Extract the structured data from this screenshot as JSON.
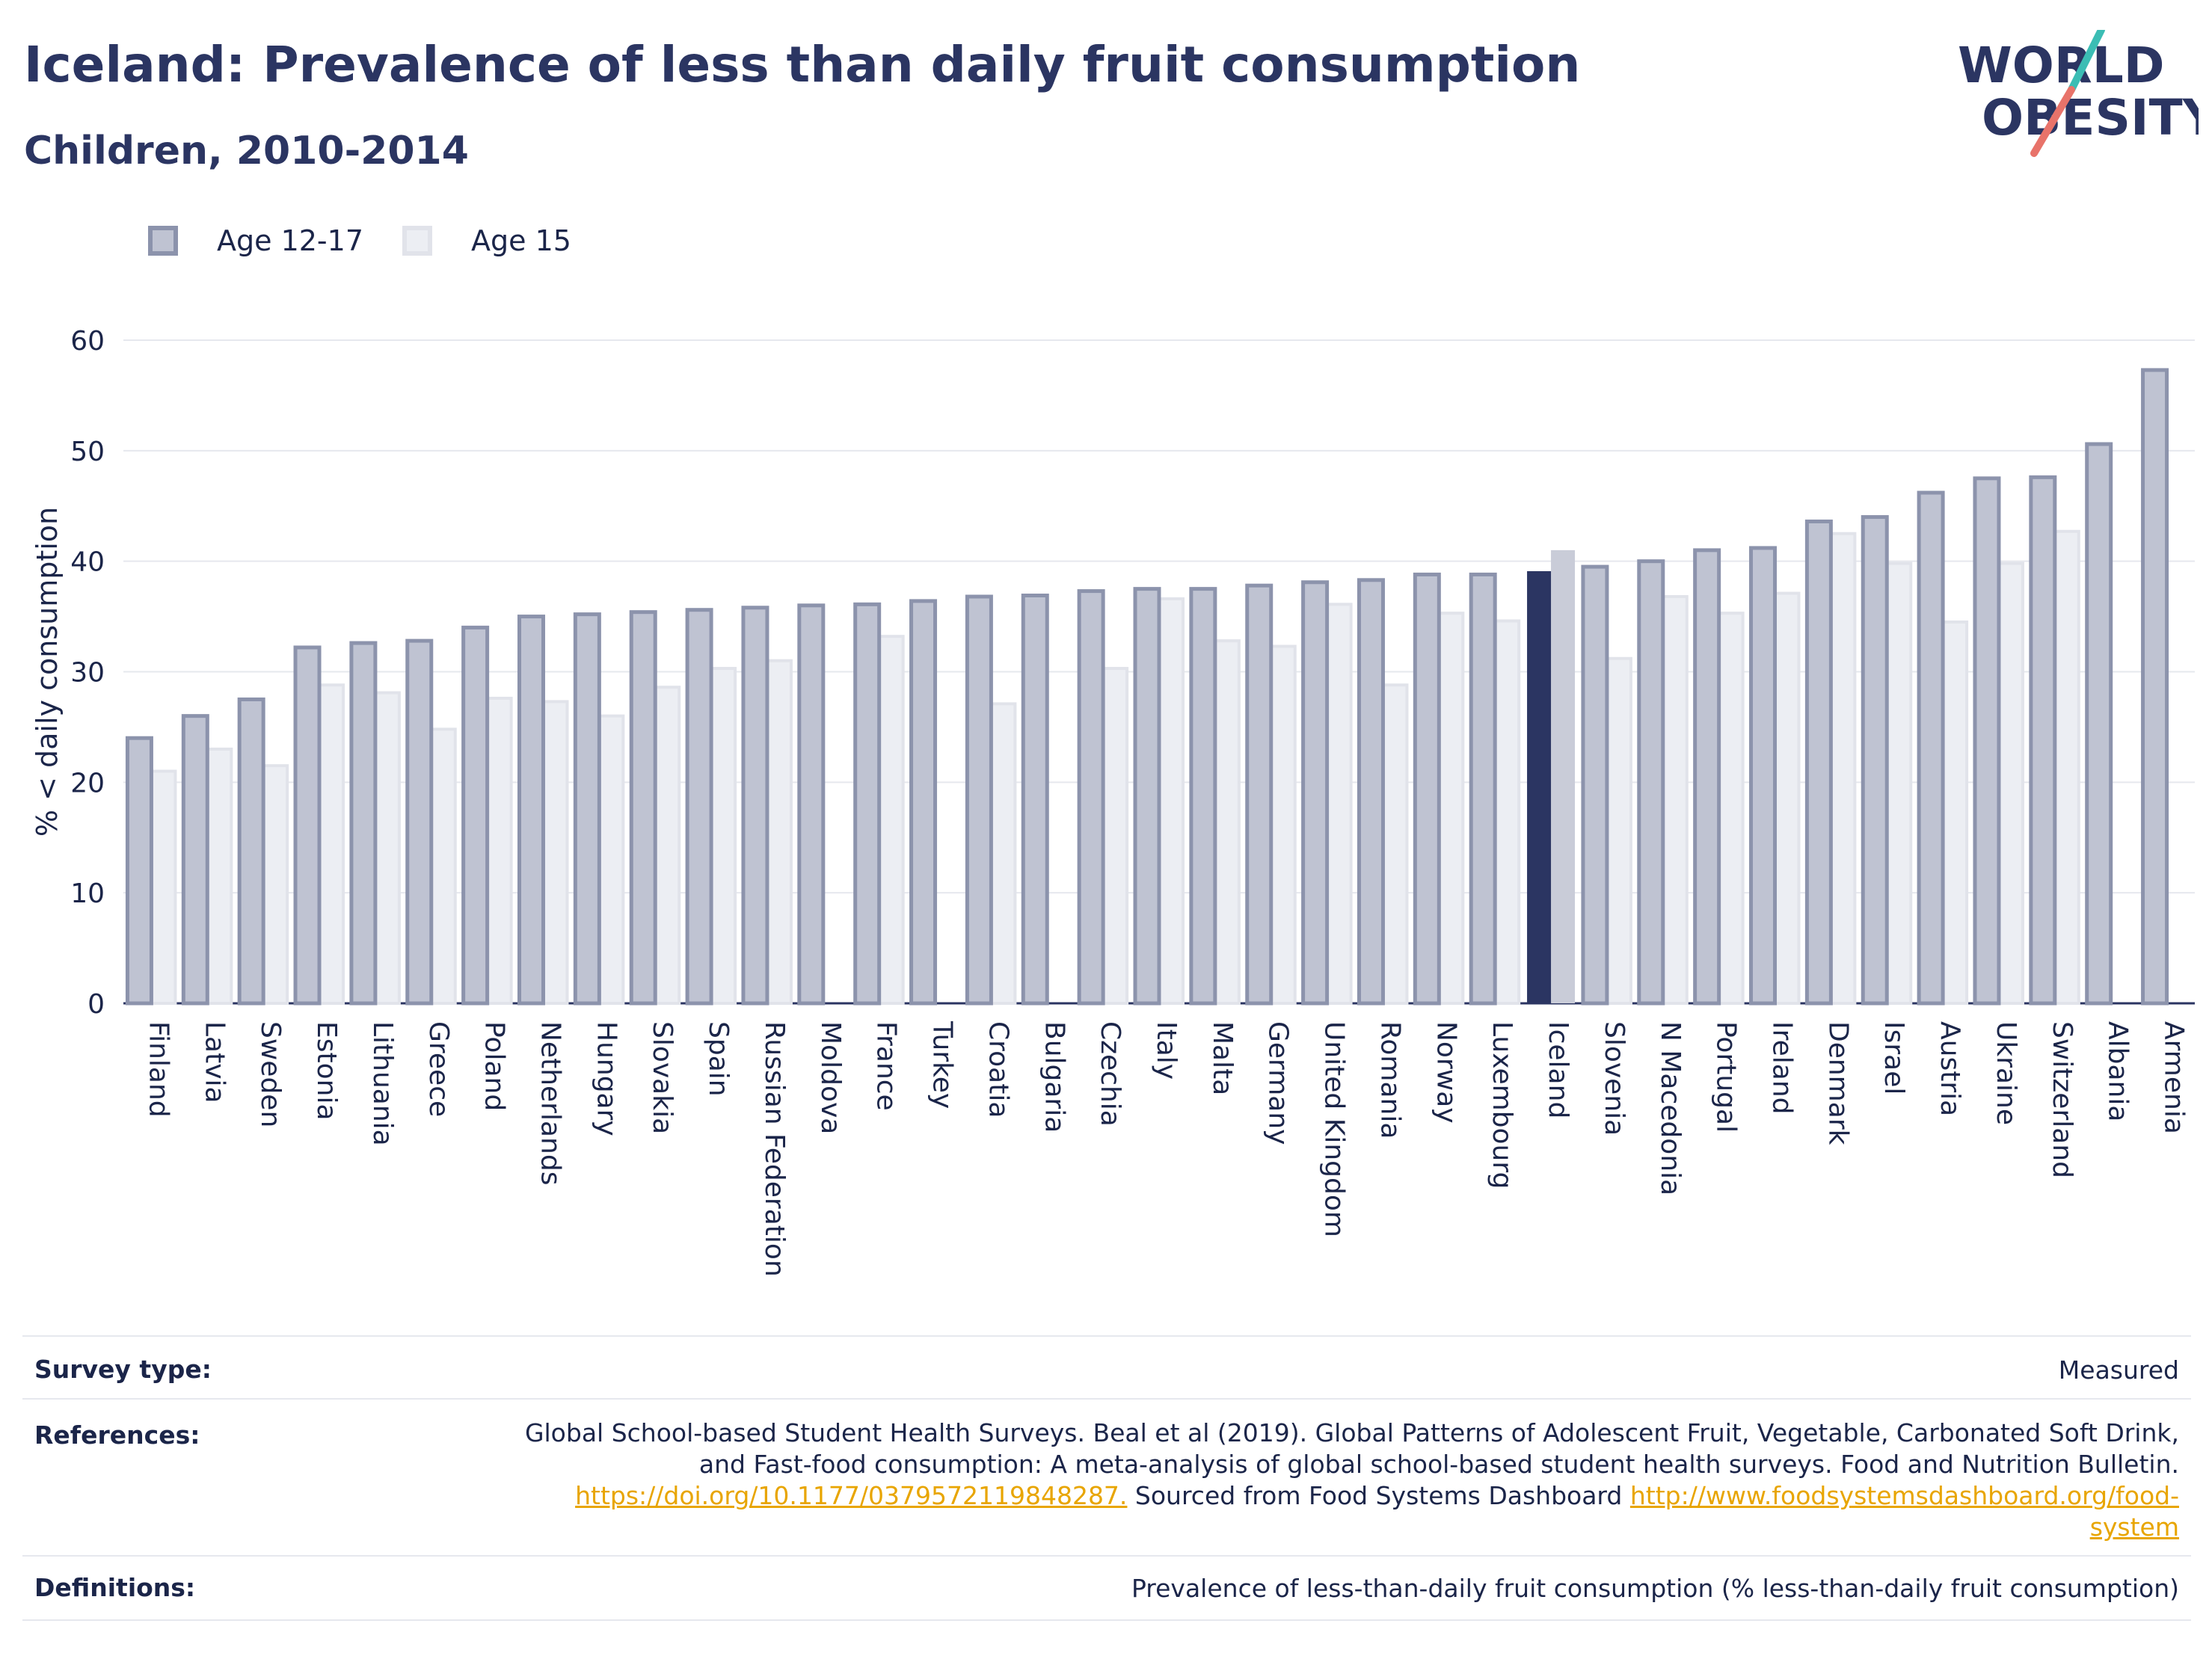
{
  "header": {
    "title": "Iceland: Prevalence of less than daily fruit consumption",
    "subtitle": "Children, 2010-2014"
  },
  "logo": {
    "line1": "WORLD",
    "line2": "OBESITY"
  },
  "colors": {
    "brand_navy": "#2b3562",
    "series1_fill": "#bfc3d2",
    "series1_stroke": "#8c93ac",
    "series2_fill": "#eceef3",
    "highlight_s1": "#2b3562",
    "highlight_s2": "#c9ccd8",
    "grid": "#e6e8ee",
    "link": "#e8a500",
    "logo_teal": "#3bbdb4",
    "logo_coral": "#e8736a"
  },
  "chart_data": {
    "type": "bar",
    "title": "Iceland: Prevalence of less than daily fruit consumption",
    "subtitle": "Children, 2010-2014",
    "ylabel": "% < daily consumption",
    "xlabel": "",
    "ylim": [
      0,
      60
    ],
    "yticks": [
      0,
      10,
      20,
      30,
      40,
      50,
      60
    ],
    "grid": true,
    "legend_position": "top-left",
    "highlight": "Iceland",
    "categories": [
      "Finland",
      "Latvia",
      "Sweden",
      "Estonia",
      "Lithuania",
      "Greece",
      "Poland",
      "Netherlands",
      "Hungary",
      "Slovakia",
      "Spain",
      "Russian Federation",
      "Moldova",
      "France",
      "Turkey",
      "Croatia",
      "Bulgaria",
      "Czechia",
      "Italy",
      "Malta",
      "Germany",
      "United Kingdom",
      "Romania",
      "Norway",
      "Luxembourg",
      "Iceland",
      "Slovenia",
      "N Macedonia",
      "Portugal",
      "Ireland",
      "Denmark",
      "Israel",
      "Austria",
      "Ukraine",
      "Switzerland",
      "Albania",
      "Armenia"
    ],
    "series": [
      {
        "name": "Age 12-17",
        "values": [
          24.0,
          26.0,
          27.5,
          32.2,
          32.6,
          32.8,
          34.0,
          35.0,
          35.2,
          35.4,
          35.6,
          35.8,
          36.0,
          36.1,
          36.4,
          36.8,
          36.9,
          37.3,
          37.5,
          37.5,
          37.8,
          38.1,
          38.3,
          38.8,
          38.8,
          39.1,
          39.5,
          40.0,
          41.0,
          41.2,
          43.6,
          44.0,
          46.2,
          47.5,
          47.6,
          50.6,
          57.3
        ]
      },
      {
        "name": "Age 15",
        "values": [
          21.0,
          23.0,
          21.5,
          28.8,
          28.1,
          24.8,
          27.6,
          27.3,
          26.0,
          28.6,
          30.3,
          31.0,
          null,
          33.2,
          null,
          27.1,
          null,
          30.3,
          36.6,
          32.8,
          32.3,
          36.1,
          28.8,
          35.3,
          34.6,
          41.0,
          31.2,
          36.8,
          35.3,
          37.1,
          42.5,
          39.8,
          34.5,
          39.8,
          42.7,
          null,
          null
        ]
      }
    ]
  },
  "footer": {
    "survey_label": "Survey type:",
    "survey_value": "Measured",
    "references_label": "References:",
    "references_line1": "Global School-based Student Health Surveys. Beal et al (2019). Global Patterns of Adolescent Fruit, Vegetable, Carbonated Soft Drink,",
    "references_line2": "and Fast-food consumption: A meta-analysis of global school-based student health surveys. Food and Nutrition Bulletin.",
    "references_link1": "https://doi.org/10.1177/0379572119848287.",
    "references_mid": " Sourced from Food Systems Dashboard ",
    "references_link2a": "http://www.foodsystemsdashboard.org/food-",
    "references_link2b": "system",
    "definitions_label": "Definitions:",
    "definitions_value": "Prevalence of less-than-daily fruit consumption (% less-than-daily fruit consumption)"
  }
}
